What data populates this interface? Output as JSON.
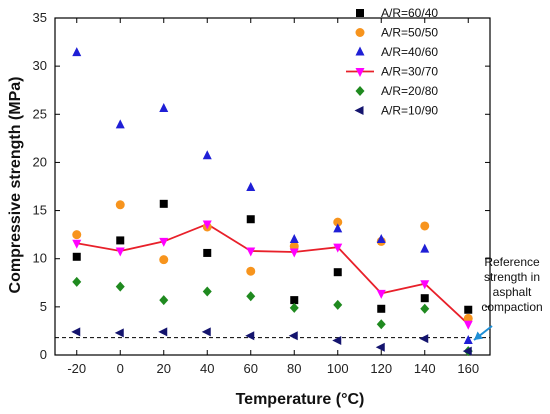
{
  "chart_data": {
    "type": "scatter",
    "xlabel": "Temperature (°C)",
    "ylabel": "Compressive strength (MPa)",
    "xlim": [
      -30,
      170
    ],
    "ylim": [
      0,
      35
    ],
    "x_ticks": [
      -20,
      0,
      20,
      40,
      60,
      80,
      100,
      120,
      140,
      160
    ],
    "y_ticks": [
      0,
      5,
      10,
      15,
      20,
      25,
      30,
      35
    ],
    "grid": false,
    "legend_position": "top-right",
    "series": [
      {
        "name": "A/R=60/40",
        "marker": "square",
        "color": "#000000",
        "line": false,
        "x": [
          -20,
          0,
          20,
          40,
          60,
          80,
          100,
          120,
          140,
          160
        ],
        "y": [
          10.2,
          11.9,
          15.7,
          10.6,
          14.1,
          5.7,
          8.6,
          4.8,
          5.9,
          4.7
        ]
      },
      {
        "name": "A/R=50/50",
        "marker": "circle",
        "color": "#f7941d",
        "line": false,
        "x": [
          -20,
          0,
          20,
          40,
          60,
          80,
          100,
          120,
          140,
          160
        ],
        "y": [
          12.5,
          15.6,
          9.9,
          13.3,
          8.7,
          11.3,
          13.8,
          11.8,
          13.4,
          3.8
        ]
      },
      {
        "name": "A/R=40/60",
        "marker": "triangle-up",
        "color": "#1f1fd6",
        "line": false,
        "x": [
          -20,
          0,
          20,
          40,
          60,
          80,
          100,
          120,
          140,
          160
        ],
        "y": [
          31.4,
          23.9,
          25.6,
          20.7,
          17.4,
          12.0,
          13.1,
          12.0,
          11.0,
          1.5
        ]
      },
      {
        "name": "A/R=30/70",
        "marker": "triangle-down",
        "color": "#ff00ff",
        "line": true,
        "line_color": "#e8202a",
        "x": [
          -20,
          0,
          20,
          40,
          60,
          80,
          100,
          120,
          140,
          160
        ],
        "y": [
          11.6,
          10.8,
          11.8,
          13.6,
          10.8,
          10.7,
          11.2,
          6.4,
          7.4,
          3.2
        ]
      },
      {
        "name": "A/R=20/80",
        "marker": "diamond",
        "color": "#1f8a1f",
        "line": false,
        "x": [
          -20,
          0,
          20,
          40,
          60,
          80,
          100,
          120,
          140,
          160
        ],
        "y": [
          7.6,
          7.1,
          5.7,
          6.6,
          6.1,
          4.9,
          5.2,
          3.2,
          4.8,
          0.4
        ]
      },
      {
        "name": "A/R=10/90",
        "marker": "triangle-left",
        "color": "#14146e",
        "line": false,
        "x": [
          -20,
          0,
          20,
          40,
          60,
          80,
          100,
          120,
          140,
          160
        ],
        "y": [
          2.4,
          2.3,
          2.4,
          2.4,
          2.0,
          2.0,
          1.5,
          0.8,
          1.7,
          0.4
        ]
      }
    ],
    "reference_line": {
      "y": 1.8,
      "style": "dashed",
      "color": "#000000"
    },
    "annotation": {
      "lines": [
        "Reference",
        "strength in",
        "asphalt",
        "compaction"
      ],
      "arrow_color": "#1e8fd6"
    }
  }
}
